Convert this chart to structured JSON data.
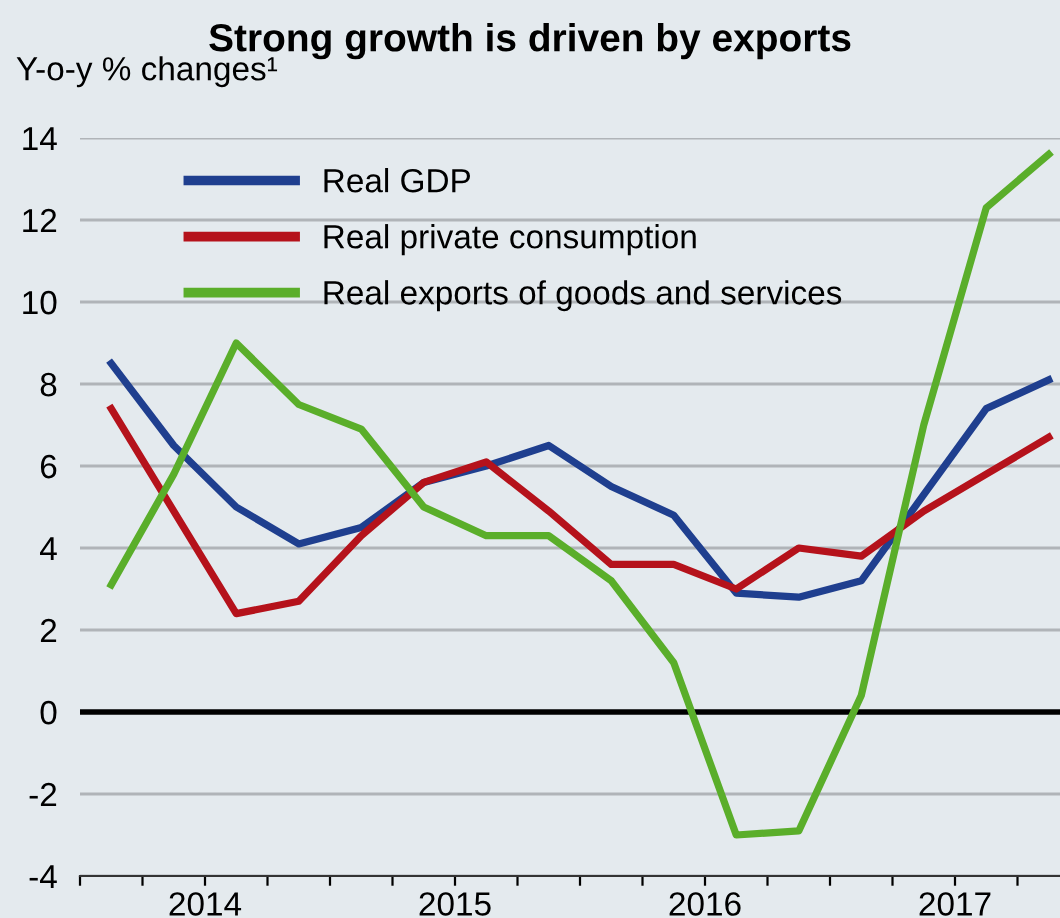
{
  "chart_data": {
    "type": "line",
    "title": "Strong growth is driven by exports",
    "ylabel": "Y-o-y % changes¹",
    "x": [
      2014.125,
      2014.375,
      2014.625,
      2014.875,
      2015.125,
      2015.375,
      2015.625,
      2015.875,
      2016.125,
      2016.375,
      2016.625,
      2016.875,
      2017.125,
      2017.375,
      2017.625,
      2017.875
    ],
    "series": [
      {
        "name": "Real GDP",
        "color": "#1f3f8f",
        "values": [
          8.5,
          6.5,
          5.0,
          4.1,
          4.5,
          5.6,
          6.0,
          6.5,
          5.5,
          4.8,
          2.9,
          2.8,
          3.2,
          5.3,
          7.4,
          8.1
        ]
      },
      {
        "name": "Real private consumption",
        "color": "#b5121b",
        "values": [
          7.4,
          4.9,
          2.4,
          2.7,
          4.3,
          5.6,
          6.1,
          4.9,
          3.6,
          3.6,
          3.0,
          4.0,
          3.8,
          4.9,
          5.8,
          6.7
        ]
      },
      {
        "name": "Real exports of goods and services",
        "color": "#5aae2a",
        "values": [
          3.1,
          5.8,
          9.0,
          7.5,
          6.9,
          5.0,
          4.3,
          4.3,
          3.2,
          1.2,
          -3.0,
          -2.9,
          0.4,
          7.0,
          12.3,
          13.6
        ]
      }
    ],
    "xlim": [
      2014,
      2017.92
    ],
    "xticks": [
      {
        "value": 2014,
        "label": null
      },
      {
        "value": 2014.25,
        "label": null
      },
      {
        "value": 2014.5,
        "label": "2014"
      },
      {
        "value": 2014.75,
        "label": null
      },
      {
        "value": 2015,
        "label": null
      },
      {
        "value": 2015.25,
        "label": null
      },
      {
        "value": 2015.5,
        "label": "2015"
      },
      {
        "value": 2015.75,
        "label": null
      },
      {
        "value": 2016,
        "label": null
      },
      {
        "value": 2016.25,
        "label": null
      },
      {
        "value": 2016.5,
        "label": "2016"
      },
      {
        "value": 2016.75,
        "label": null
      },
      {
        "value": 2017,
        "label": null
      },
      {
        "value": 2017.25,
        "label": null
      },
      {
        "value": 2017.5,
        "label": "2017"
      },
      {
        "value": 2017.75,
        "label": null
      }
    ],
    "ylim": [
      -4,
      14
    ],
    "yticks": [
      -4,
      -2,
      0,
      2,
      4,
      6,
      8,
      10,
      12,
      14
    ],
    "ref_lines": [
      {
        "axis": "y",
        "value": 0,
        "color": "#000000"
      }
    ],
    "grid": "y",
    "legend": "top left",
    "line_style": "solid",
    "marker": "none"
  }
}
